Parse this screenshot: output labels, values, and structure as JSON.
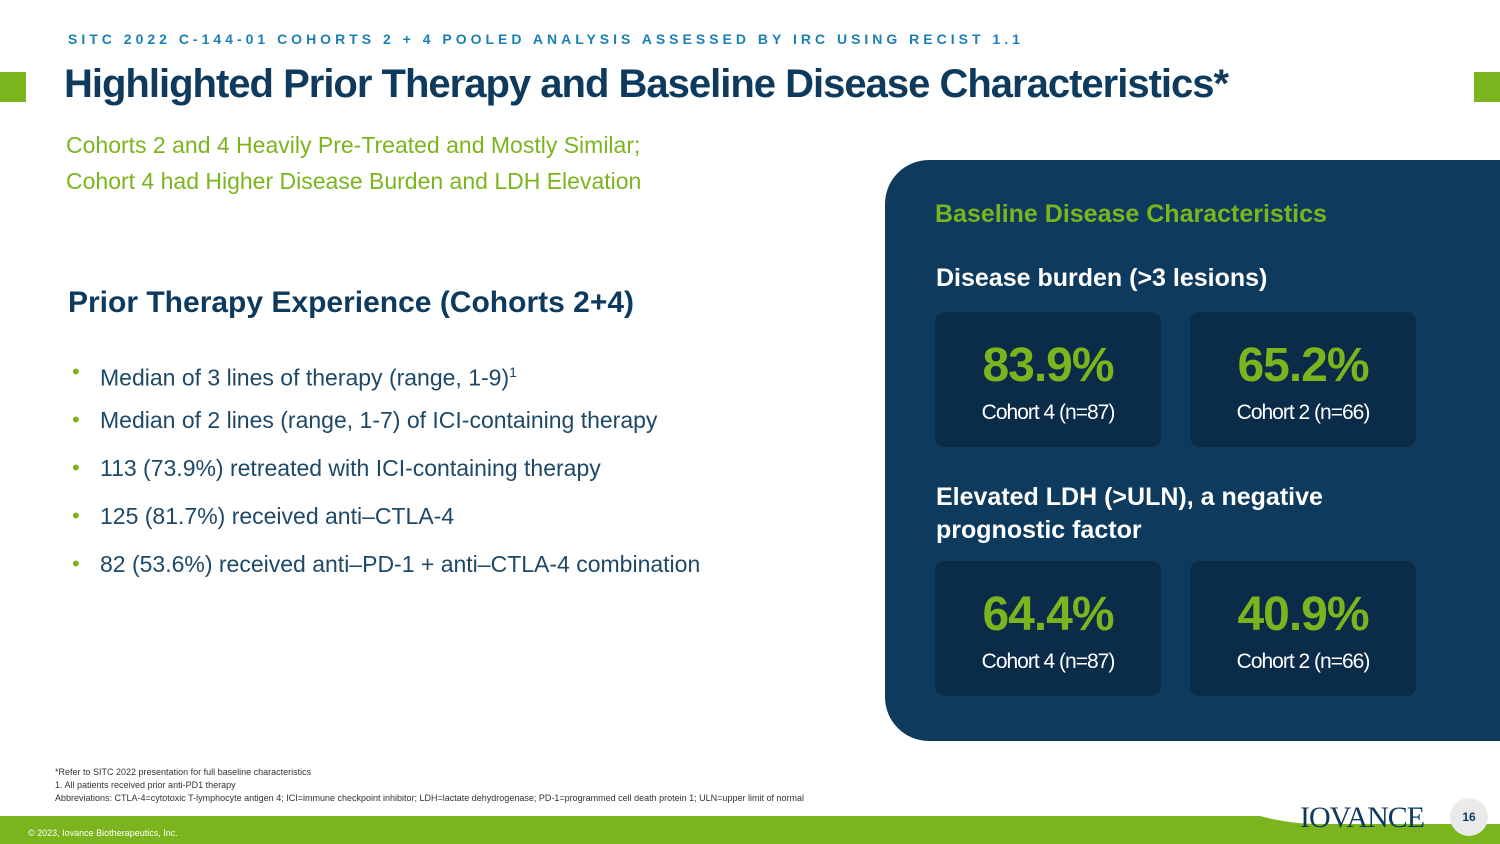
{
  "header": {
    "kicker": "SITC 2022 C-144-01 COHORTS 2 + 4 POOLED ANALYSIS ASSESSED BY IRC USING RECIST 1.1",
    "title": "Highlighted Prior Therapy and Baseline Disease Characteristics*",
    "subtitle_line1": "Cohorts 2 and 4 Heavily Pre-Treated and Mostly Similar;",
    "subtitle_line2": "Cohort 4 had Higher Disease Burden and LDH Elevation"
  },
  "prior_therapy": {
    "heading": "Prior Therapy Experience (Cohorts 2+4)",
    "bullet_symbol": "•",
    "bullets": [
      {
        "text": "Median of 3 lines of therapy (range, 1-9)",
        "sup": "1"
      },
      {
        "text": "Median of 2 lines (range, 1-7) of ICI-containing therapy"
      },
      {
        "text": "113 (73.9%) retreated with ICI-containing therapy"
      },
      {
        "text": "125 (81.7%) received anti–CTLA-4"
      },
      {
        "text": "82 (53.6%) received anti–PD-1 + anti–CTLA-4 combination"
      }
    ]
  },
  "baseline": {
    "title": "Baseline Disease Characteristics",
    "groups": [
      {
        "heading_line1": "Disease burden (>3 lesions)",
        "heading_line2": "",
        "stats": [
          {
            "value": "83.9%",
            "label": "Cohort 4 (n=87)"
          },
          {
            "value": "65.2%",
            "label": "Cohort 2 (n=66)"
          }
        ]
      },
      {
        "heading_line1": "Elevated LDH (>ULN), a negative",
        "heading_line2": "prognostic factor",
        "stats": [
          {
            "value": "64.4%",
            "label": "Cohort 4 (n=87)"
          },
          {
            "value": "40.9%",
            "label": "Cohort 2 (n=66)"
          }
        ]
      }
    ]
  },
  "footnotes": {
    "line1": "*Refer to SITC 2022 presentation for full baseline characteristics",
    "line2": "1. All patients received prior anti-PD1 therapy",
    "line3": "Abbreviations: CTLA-4=cytotoxic T-lymphocyte antigen 4; ICI=immune checkpoint inhibitor;  LDH=lactate dehydrogenase; PD-1=programmed cell death protein 1; ULN=upper limit of normal"
  },
  "footer": {
    "copyright": "© 2023, Iovance Biotherapeutics, Inc.",
    "logo_text": "IOVANCE",
    "page_number": "16"
  },
  "colors": {
    "navy": "#0e3a5e",
    "green": "#7ab51d",
    "kicker_blue": "#1a7fb5"
  }
}
